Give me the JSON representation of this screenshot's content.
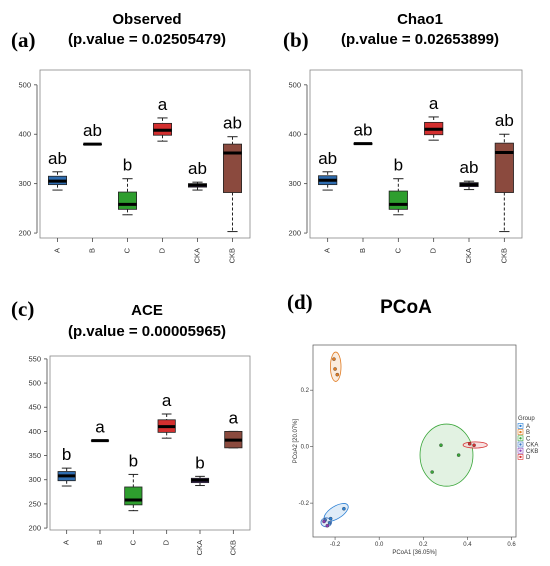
{
  "panel_letters": {
    "a": "(a)",
    "b": "(b)",
    "c": "(c)",
    "d": "(d)"
  },
  "colors": {
    "A": "#2f6db0",
    "B": "#1a1a1a",
    "C": "#2e9e2e",
    "D": "#d42f2f",
    "CKA": "#6b3fa0",
    "CKB": "#8b4a3e",
    "pcoa_A": "#2a7fd4",
    "pcoa_B": "#e07b22",
    "pcoa_C": "#3aa63a",
    "pcoa_CKA": "#3d78c9",
    "pcoa_CKB": "#8a3fb5",
    "pcoa_D": "#d43030"
  },
  "chart_data": [
    {
      "type": "box",
      "panel": "a",
      "title": "Observed",
      "subtitle": "(p.value = 0.02505479)",
      "categories": [
        "A",
        "B",
        "C",
        "D",
        "CKA",
        "CKB"
      ],
      "ylim": [
        190,
        530
      ],
      "yticks": [
        200,
        300,
        400,
        500
      ],
      "boxes": [
        {
          "group": "A",
          "whisker_low": 287,
          "q1": 298,
          "median": 305,
          "q3": 315,
          "whisker_high": 324,
          "label": "ab"
        },
        {
          "group": "B",
          "whisker_low": 380,
          "q1": 380,
          "median": 380,
          "q3": 380,
          "whisker_high": 380,
          "label": "ab"
        },
        {
          "group": "C",
          "whisker_low": 237,
          "q1": 248,
          "median": 258,
          "q3": 283,
          "whisker_high": 310,
          "label": "b"
        },
        {
          "group": "D",
          "whisker_low": 386,
          "q1": 398,
          "median": 408,
          "q3": 422,
          "whisker_high": 433,
          "label": "a"
        },
        {
          "group": "CKA",
          "whisker_low": 287,
          "q1": 293,
          "median": 297,
          "q3": 300,
          "whisker_high": 303,
          "label": "ab"
        },
        {
          "group": "CKB",
          "whisker_low": 203,
          "q1": 282,
          "median": 362,
          "q3": 380,
          "whisker_high": 395,
          "label": "ab"
        }
      ]
    },
    {
      "type": "box",
      "panel": "b",
      "title": "Chao1",
      "subtitle": "(p.value = 0.02653899)",
      "categories": [
        "A",
        "B",
        "C",
        "D",
        "CKA",
        "CKB"
      ],
      "ylim": [
        190,
        530
      ],
      "yticks": [
        200,
        300,
        400,
        500
      ],
      "boxes": [
        {
          "group": "A",
          "whisker_low": 287,
          "q1": 298,
          "median": 307,
          "q3": 316,
          "whisker_high": 324,
          "label": "ab"
        },
        {
          "group": "B",
          "whisker_low": 381,
          "q1": 381,
          "median": 381,
          "q3": 381,
          "whisker_high": 381,
          "label": "ab"
        },
        {
          "group": "C",
          "whisker_low": 237,
          "q1": 248,
          "median": 258,
          "q3": 285,
          "whisker_high": 310,
          "label": "b"
        },
        {
          "group": "D",
          "whisker_low": 388,
          "q1": 399,
          "median": 410,
          "q3": 424,
          "whisker_high": 435,
          "label": "a"
        },
        {
          "group": "CKA",
          "whisker_low": 288,
          "q1": 294,
          "median": 298,
          "q3": 302,
          "whisker_high": 305,
          "label": "ab"
        },
        {
          "group": "CKB",
          "whisker_low": 203,
          "q1": 282,
          "median": 363,
          "q3": 382,
          "whisker_high": 400,
          "label": "ab"
        }
      ]
    },
    {
      "type": "box",
      "panel": "c",
      "title": "ACE",
      "subtitle": "(p.value = 0.00005965)",
      "categories": [
        "A",
        "B",
        "C",
        "D",
        "CKA",
        "CKB"
      ],
      "ylim": [
        196,
        556
      ],
      "yticks": [
        200,
        250,
        300,
        350,
        400,
        450,
        500,
        550
      ],
      "boxes": [
        {
          "group": "A",
          "whisker_low": 287,
          "q1": 298,
          "median": 308,
          "q3": 317,
          "whisker_high": 324,
          "label": "b"
        },
        {
          "group": "B",
          "whisker_low": 381,
          "q1": 381,
          "median": 381,
          "q3": 381,
          "whisker_high": 381,
          "label": "a"
        },
        {
          "group": "C",
          "whisker_low": 236,
          "q1": 248,
          "median": 258,
          "q3": 285,
          "whisker_high": 311,
          "label": "b"
        },
        {
          "group": "D",
          "whisker_low": 386,
          "q1": 398,
          "median": 410,
          "q3": 424,
          "whisker_high": 436,
          "label": "a"
        },
        {
          "group": "CKA",
          "whisker_low": 288,
          "q1": 294,
          "median": 299,
          "q3": 303,
          "whisker_high": 307,
          "label": "b"
        },
        {
          "group": "CKB",
          "whisker_low": 366,
          "q1": 366,
          "median": 382,
          "q3": 400,
          "whisker_high": 400,
          "label": "a"
        }
      ]
    },
    {
      "type": "scatter",
      "panel": "d",
      "title": "PCoA",
      "xlabel": "PCoA1 [36.05%]",
      "ylabel": "PCoA2 [20.07%]",
      "xlim": [
        -0.3,
        0.62
      ],
      "ylim": [
        -0.32,
        0.36
      ],
      "xticks": [
        "-0.2",
        "0.0",
        "0.2",
        "0.4",
        "0.6"
      ],
      "yticks": [
        "-0.2",
        "0.0",
        "0.2"
      ],
      "legend_title": "Group",
      "legend_position": "right",
      "legend_entries": [
        "A",
        "B",
        "C",
        "CKA",
        "CKB",
        "D"
      ],
      "series": [
        {
          "name": "A",
          "points": [
            [
              -0.16,
              -0.22
            ],
            [
              -0.22,
              -0.255
            ]
          ]
        },
        {
          "name": "B",
          "points": [
            [
              -0.205,
              0.31
            ],
            [
              -0.2,
              0.275
            ],
            [
              -0.19,
              0.255
            ]
          ]
        },
        {
          "name": "C",
          "points": [
            [
              0.28,
              0.005
            ],
            [
              0.36,
              -0.03
            ],
            [
              0.24,
              -0.09
            ]
          ]
        },
        {
          "name": "CKA",
          "points": [
            [
              -0.225,
              -0.27
            ],
            [
              -0.245,
              -0.26
            ]
          ]
        },
        {
          "name": "CKB",
          "points": [
            [
              -0.235,
              -0.28
            ],
            [
              -0.25,
              -0.265
            ]
          ]
        },
        {
          "name": "D",
          "points": [
            [
              0.43,
              0.005
            ],
            [
              0.41,
              0.01
            ]
          ]
        }
      ]
    }
  ]
}
